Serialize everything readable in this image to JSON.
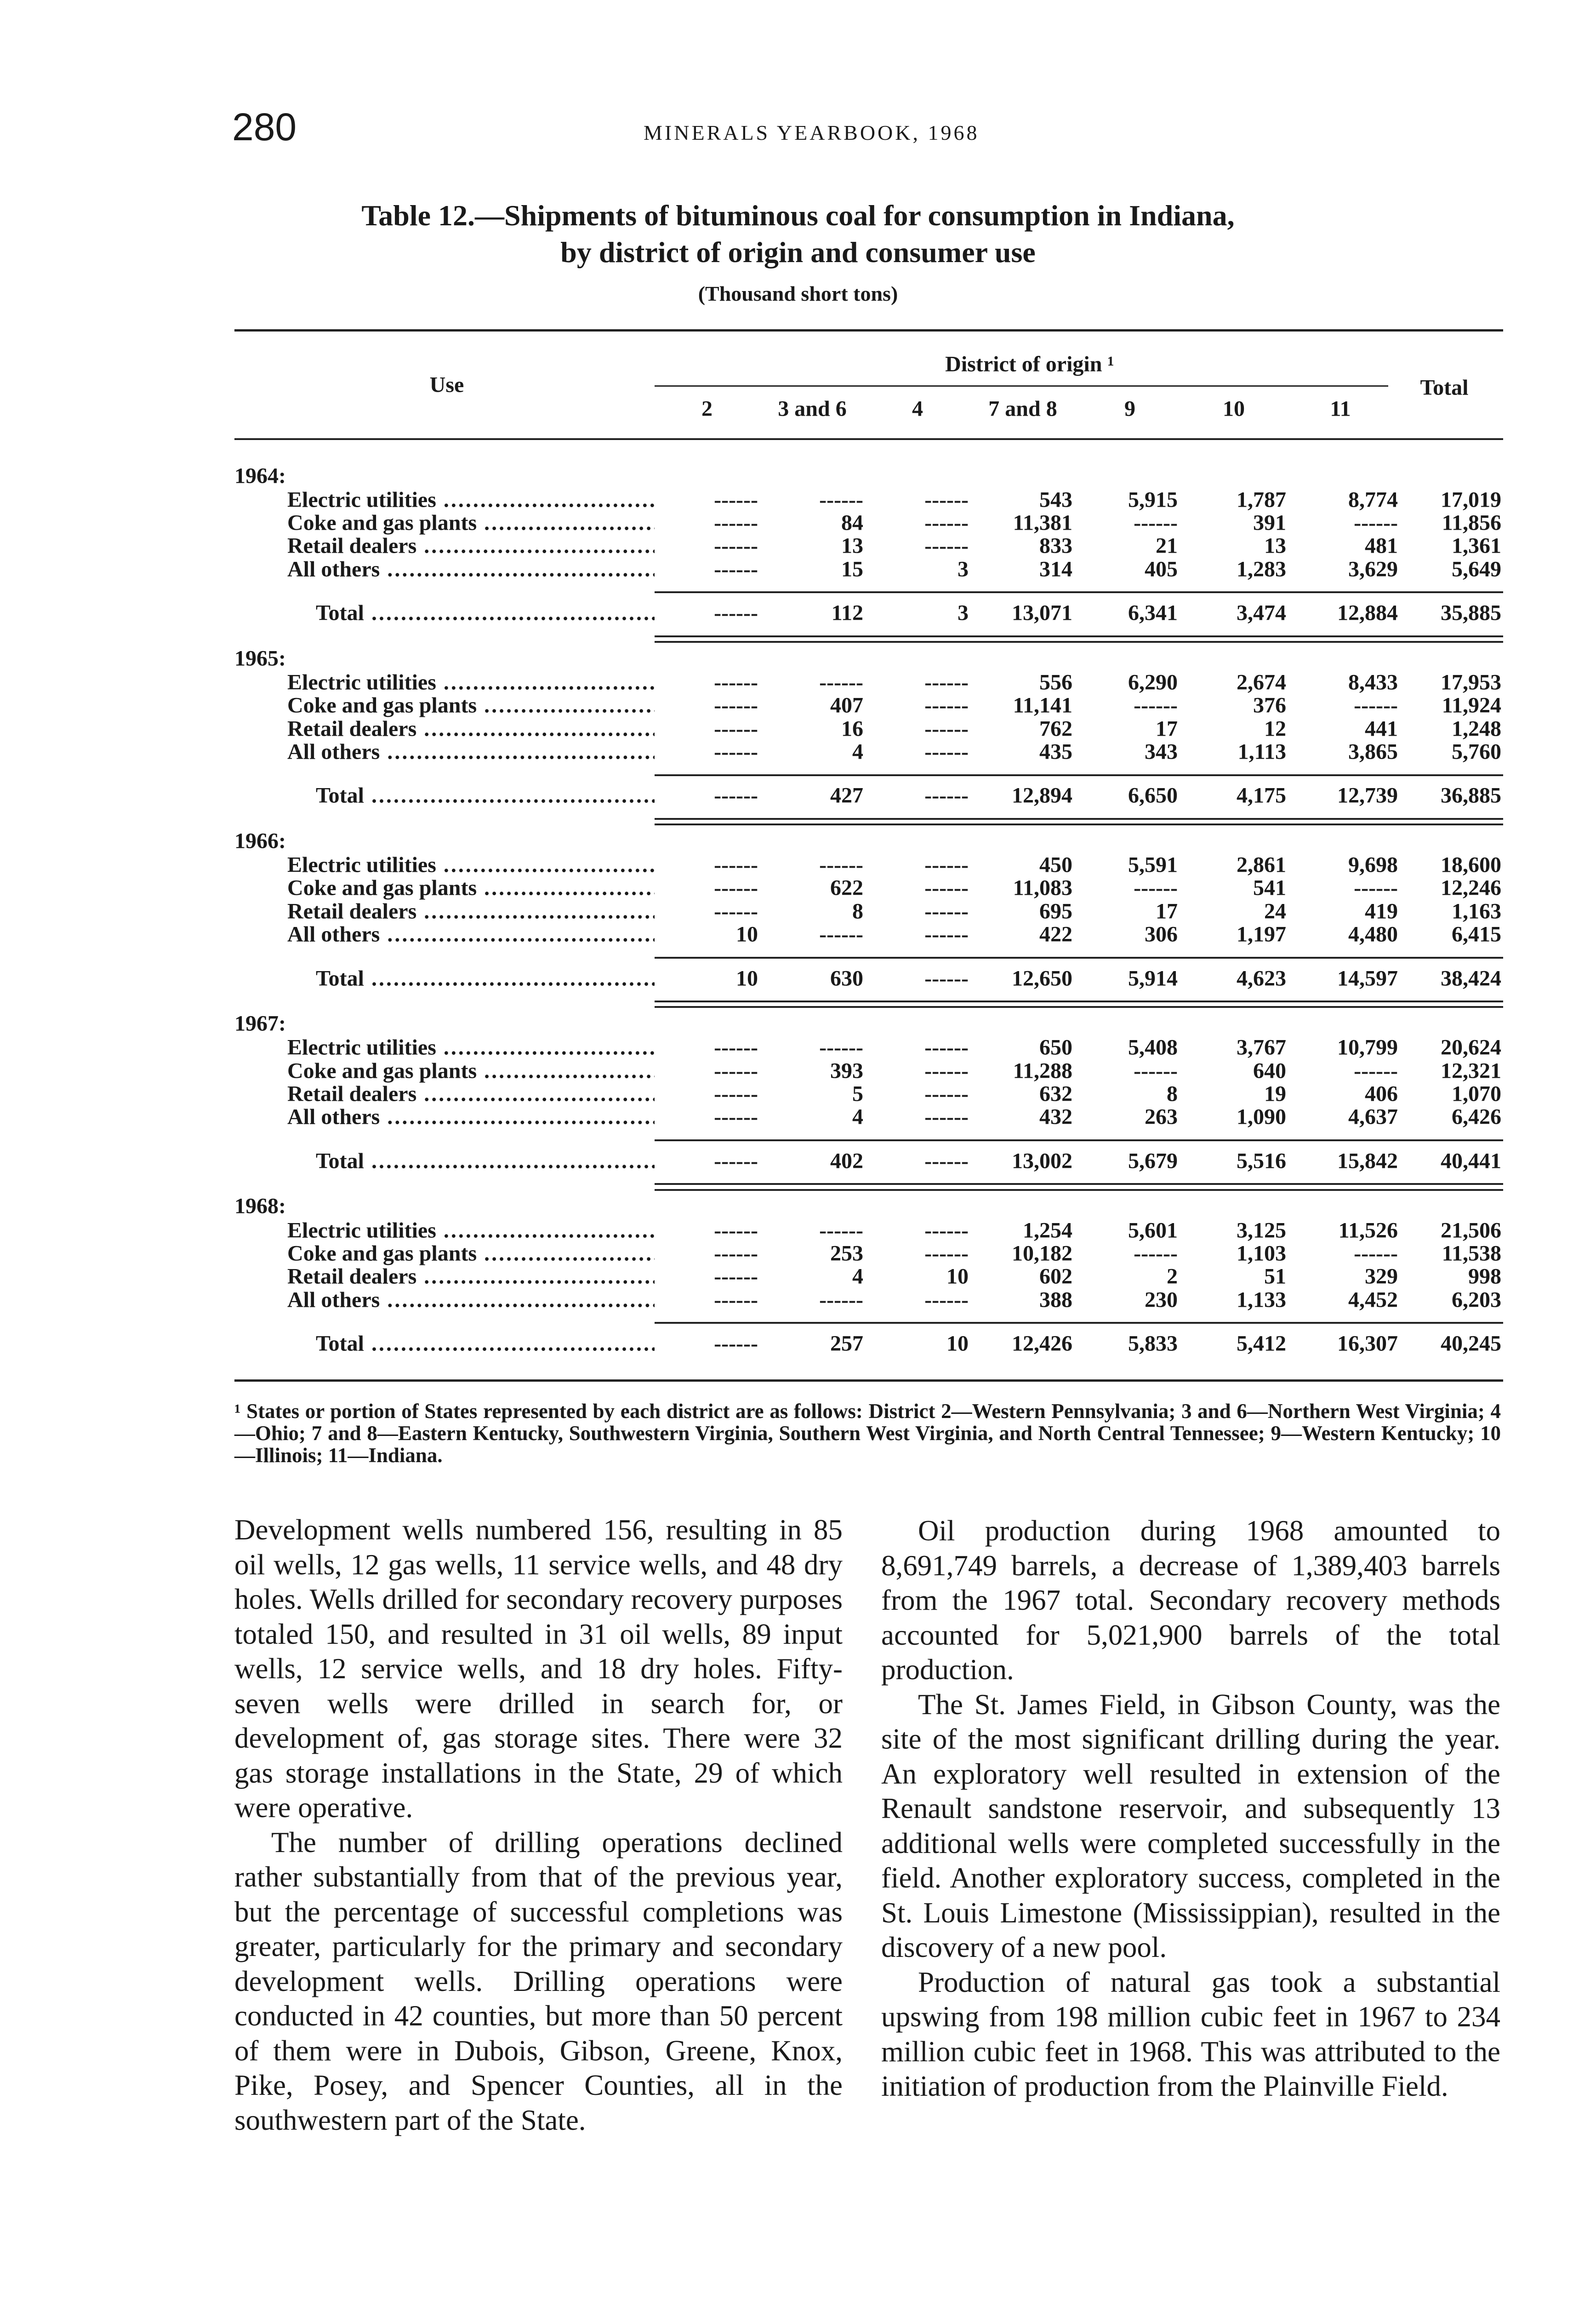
{
  "header": {
    "page_number": "280",
    "running_head": "MINERALS YEARBOOK, 1968"
  },
  "table": {
    "title_line1": "Table 12.—Shipments of bituminous coal for consumption in Indiana,",
    "title_line2": "by district of origin and consumer use",
    "subtitle": "(Thousand short tons)",
    "use_header": "Use",
    "district_header": "District of origin ¹",
    "total_header": "Total",
    "district_columns": [
      "2",
      "3 and 6",
      "4",
      "7 and 8",
      "9",
      "10",
      "11"
    ],
    "years": [
      {
        "year": "1964:",
        "rows": [
          {
            "label": "Electric utilities",
            "values": [
              "------",
              "------",
              "------",
              "543",
              "5,915",
              "1,787",
              "8,774",
              "17,019"
            ]
          },
          {
            "label": "Coke and gas plants",
            "values": [
              "------",
              "84",
              "------",
              "11,381",
              "------",
              "391",
              "------",
              "11,856"
            ]
          },
          {
            "label": "Retail dealers",
            "values": [
              "------",
              "13",
              "------",
              "833",
              "21",
              "13",
              "481",
              "1,361"
            ]
          },
          {
            "label": "All others",
            "values": [
              "------",
              "15",
              "3",
              "314",
              "405",
              "1,283",
              "3,629",
              "5,649"
            ]
          }
        ],
        "total": {
          "label": "Total",
          "values": [
            "------",
            "112",
            "3",
            "13,071",
            "6,341",
            "3,474",
            "12,884",
            "35,885"
          ]
        }
      },
      {
        "year": "1965:",
        "rows": [
          {
            "label": "Electric utilities",
            "values": [
              "------",
              "------",
              "------",
              "556",
              "6,290",
              "2,674",
              "8,433",
              "17,953"
            ]
          },
          {
            "label": "Coke and gas plants",
            "values": [
              "------",
              "407",
              "------",
              "11,141",
              "------",
              "376",
              "------",
              "11,924"
            ]
          },
          {
            "label": "Retail dealers",
            "values": [
              "------",
              "16",
              "------",
              "762",
              "17",
              "12",
              "441",
              "1,248"
            ]
          },
          {
            "label": "All others",
            "values": [
              "------",
              "4",
              "------",
              "435",
              "343",
              "1,113",
              "3,865",
              "5,760"
            ]
          }
        ],
        "total": {
          "label": "Total",
          "values": [
            "------",
            "427",
            "------",
            "12,894",
            "6,650",
            "4,175",
            "12,739",
            "36,885"
          ]
        }
      },
      {
        "year": "1966:",
        "rows": [
          {
            "label": "Electric utilities",
            "values": [
              "------",
              "------",
              "------",
              "450",
              "5,591",
              "2,861",
              "9,698",
              "18,600"
            ]
          },
          {
            "label": "Coke and gas plants",
            "values": [
              "------",
              "622",
              "------",
              "11,083",
              "------",
              "541",
              "------",
              "12,246"
            ]
          },
          {
            "label": "Retail dealers",
            "values": [
              "------",
              "8",
              "------",
              "695",
              "17",
              "24",
              "419",
              "1,163"
            ]
          },
          {
            "label": "All others",
            "values": [
              "10",
              "------",
              "------",
              "422",
              "306",
              "1,197",
              "4,480",
              "6,415"
            ]
          }
        ],
        "total": {
          "label": "Total",
          "values": [
            "10",
            "630",
            "------",
            "12,650",
            "5,914",
            "4,623",
            "14,597",
            "38,424"
          ]
        }
      },
      {
        "year": "1967:",
        "rows": [
          {
            "label": "Electric utilities",
            "values": [
              "------",
              "------",
              "------",
              "650",
              "5,408",
              "3,767",
              "10,799",
              "20,624"
            ]
          },
          {
            "label": "Coke and gas plants",
            "values": [
              "------",
              "393",
              "------",
              "11,288",
              "------",
              "640",
              "------",
              "12,321"
            ]
          },
          {
            "label": "Retail dealers",
            "values": [
              "------",
              "5",
              "------",
              "632",
              "8",
              "19",
              "406",
              "1,070"
            ]
          },
          {
            "label": "All others",
            "values": [
              "------",
              "4",
              "------",
              "432",
              "263",
              "1,090",
              "4,637",
              "6,426"
            ]
          }
        ],
        "total": {
          "label": "Total",
          "values": [
            "------",
            "402",
            "------",
            "13,002",
            "5,679",
            "5,516",
            "15,842",
            "40,441"
          ]
        }
      },
      {
        "year": "1968:",
        "rows": [
          {
            "label": "Electric utilities",
            "values": [
              "------",
              "------",
              "------",
              "1,254",
              "5,601",
              "3,125",
              "11,526",
              "21,506"
            ]
          },
          {
            "label": "Coke and gas plants",
            "values": [
              "------",
              "253",
              "------",
              "10,182",
              "------",
              "1,103",
              "------",
              "11,538"
            ]
          },
          {
            "label": "Retail dealers",
            "values": [
              "------",
              "4",
              "10",
              "602",
              "2",
              "51",
              "329",
              "998"
            ]
          },
          {
            "label": "All others",
            "values": [
              "------",
              "------",
              "------",
              "388",
              "230",
              "1,133",
              "4,452",
              "6,203"
            ]
          }
        ],
        "total": {
          "label": "Total",
          "values": [
            "------",
            "257",
            "10",
            "12,426",
            "5,833",
            "5,412",
            "16,307",
            "40,245"
          ]
        }
      }
    ],
    "footnote": "¹ States or portion of States represented by each district are as follows: District 2—Western Pennsylvania; 3 and 6—Northern West Virginia; 4—Ohio; 7 and 8—Eastern Kentucky, Southwestern Virginia, Southern West Virginia, and North Central Tennessee; 9—Western Kentucky; 10—Illinois; 11—Indiana."
  },
  "body": {
    "left": [
      "Development wells numbered 156, resulting in 85 oil wells, 12 gas wells, 11 service wells, and 48 dry holes. Wells drilled for secondary recovery purposes totaled 150, and resulted in 31 oil wells, 89 input wells, 12 service wells, and 18 dry holes. Fifty-seven wells were drilled in search for, or development of, gas storage sites. There were 32 gas storage installations in the State, 29 of which were operative.",
      "The number of drilling operations declined rather substantially from that of the previous year, but the percentage of successful completions was greater, particularly for the primary and secondary development wells. Drilling operations were conducted in 42 counties, but more than 50 percent of them were in Dubois, Gibson, Greene, Knox, Pike, Posey, and Spencer Counties, all in the southwestern part of the State."
    ],
    "right": [
      "Oil production during 1968 amounted to 8,691,749 barrels, a decrease of 1,389,403 barrels from the 1967 total. Secondary recovery methods accounted for 5,021,900 barrels of the total production.",
      "The St. James Field, in Gibson County, was the site of the most significant drilling during the year. An exploratory well resulted in extension of the Renault sandstone reservoir, and subsequently 13 additional wells were completed successfully in the field. Another exploratory success, completed in the St. Louis Limestone (Mississippian), resulted in the discovery of a new pool.",
      "Production of natural gas took a substantial upswing from 198 million cubic feet in 1967 to 234 million cubic feet in 1968. This was attributed to the initiation of production from the Plainville Field."
    ]
  }
}
